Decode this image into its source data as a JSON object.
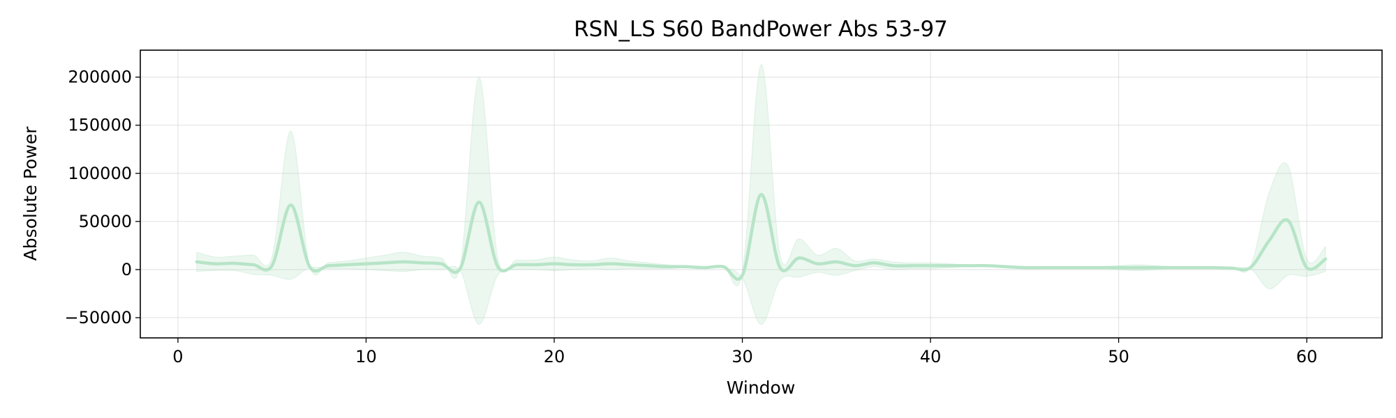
{
  "chart_data": {
    "type": "line",
    "title": "RSN_LS S60 BandPower Abs 53-97",
    "xlabel": "Window",
    "ylabel": "Absolute Power",
    "xlim": [
      -2,
      64
    ],
    "ylim": [
      -71000,
      228000
    ],
    "x_ticks": [
      0,
      10,
      20,
      30,
      40,
      50,
      60
    ],
    "x_tick_labels": [
      "0",
      "10",
      "20",
      "30",
      "40",
      "50",
      "60"
    ],
    "y_ticks": [
      -50000,
      0,
      50000,
      100000,
      150000,
      200000
    ],
    "y_tick_labels": [
      "−50000",
      "0",
      "50000",
      "100000",
      "150000",
      "200000"
    ],
    "grid": true,
    "line_color": "#b7e4c7",
    "band_color": "#b7e4c7",
    "series": [
      {
        "x": [
          1,
          2,
          3,
          4,
          5,
          6,
          7,
          8,
          9,
          10,
          11,
          12,
          13,
          14,
          15,
          16,
          17,
          18,
          19,
          20,
          21,
          22,
          23,
          24,
          25,
          26,
          27,
          28,
          29,
          30,
          31,
          32,
          33,
          34,
          35,
          36,
          37,
          38,
          39,
          40,
          41,
          42,
          43,
          44,
          45,
          46,
          47,
          48,
          49,
          50,
          51,
          52,
          53,
          54,
          55,
          56,
          57,
          58,
          59,
          60,
          61
        ],
        "mean": [
          8000,
          6000,
          6500,
          5000,
          4000,
          67000,
          3000,
          4000,
          5000,
          6000,
          7000,
          8000,
          7000,
          6000,
          1000,
          70000,
          3000,
          5000,
          5000,
          6000,
          5000,
          5000,
          6000,
          5000,
          4000,
          3000,
          3000,
          2000,
          3000,
          -6000,
          78000,
          2000,
          12000,
          6000,
          8000,
          4000,
          7000,
          4000,
          4000,
          4000,
          4000,
          4000,
          4000,
          3000,
          2000,
          2000,
          2000,
          2000,
          2000,
          2000,
          2000,
          2000,
          2000,
          2000,
          2000,
          1500,
          2000,
          30000,
          51000,
          2000,
          11000
        ],
        "upper": [
          18000,
          13000,
          14000,
          15000,
          13000,
          144000,
          4000,
          7000,
          9000,
          12000,
          15000,
          18000,
          14000,
          12000,
          3000,
          200000,
          12000,
          10000,
          10000,
          13000,
          10000,
          9000,
          12000,
          9000,
          7000,
          5000,
          4000,
          3000,
          4000,
          -3000,
          213000,
          15000,
          32000,
          15000,
          22000,
          9000,
          11000,
          8000,
          7000,
          7000,
          6000,
          5000,
          5000,
          4000,
          3000,
          3000,
          3000,
          3000,
          3000,
          4000,
          5000,
          4000,
          3000,
          3000,
          3000,
          2500,
          3000,
          80000,
          108000,
          11000,
          24000
        ],
        "lower": [
          -2000,
          -1000,
          -1000,
          -5000,
          -6000,
          -10000,
          2000,
          1000,
          1000,
          0,
          -1000,
          -2000,
          0,
          0,
          -1000,
          -57000,
          -6000,
          0,
          0,
          -1000,
          0,
          1000,
          0,
          1000,
          1000,
          1000,
          2000,
          1000,
          2000,
          -9000,
          -57000,
          -11000,
          -8000,
          -3000,
          -6000,
          -1000,
          3000,
          0,
          1000,
          1000,
          2000,
          3000,
          3000,
          2000,
          1000,
          1000,
          1000,
          1000,
          1000,
          0,
          -1000,
          0,
          1000,
          1000,
          1000,
          500,
          1000,
          -20000,
          -6000,
          -7000,
          -2000
        ]
      }
    ]
  }
}
